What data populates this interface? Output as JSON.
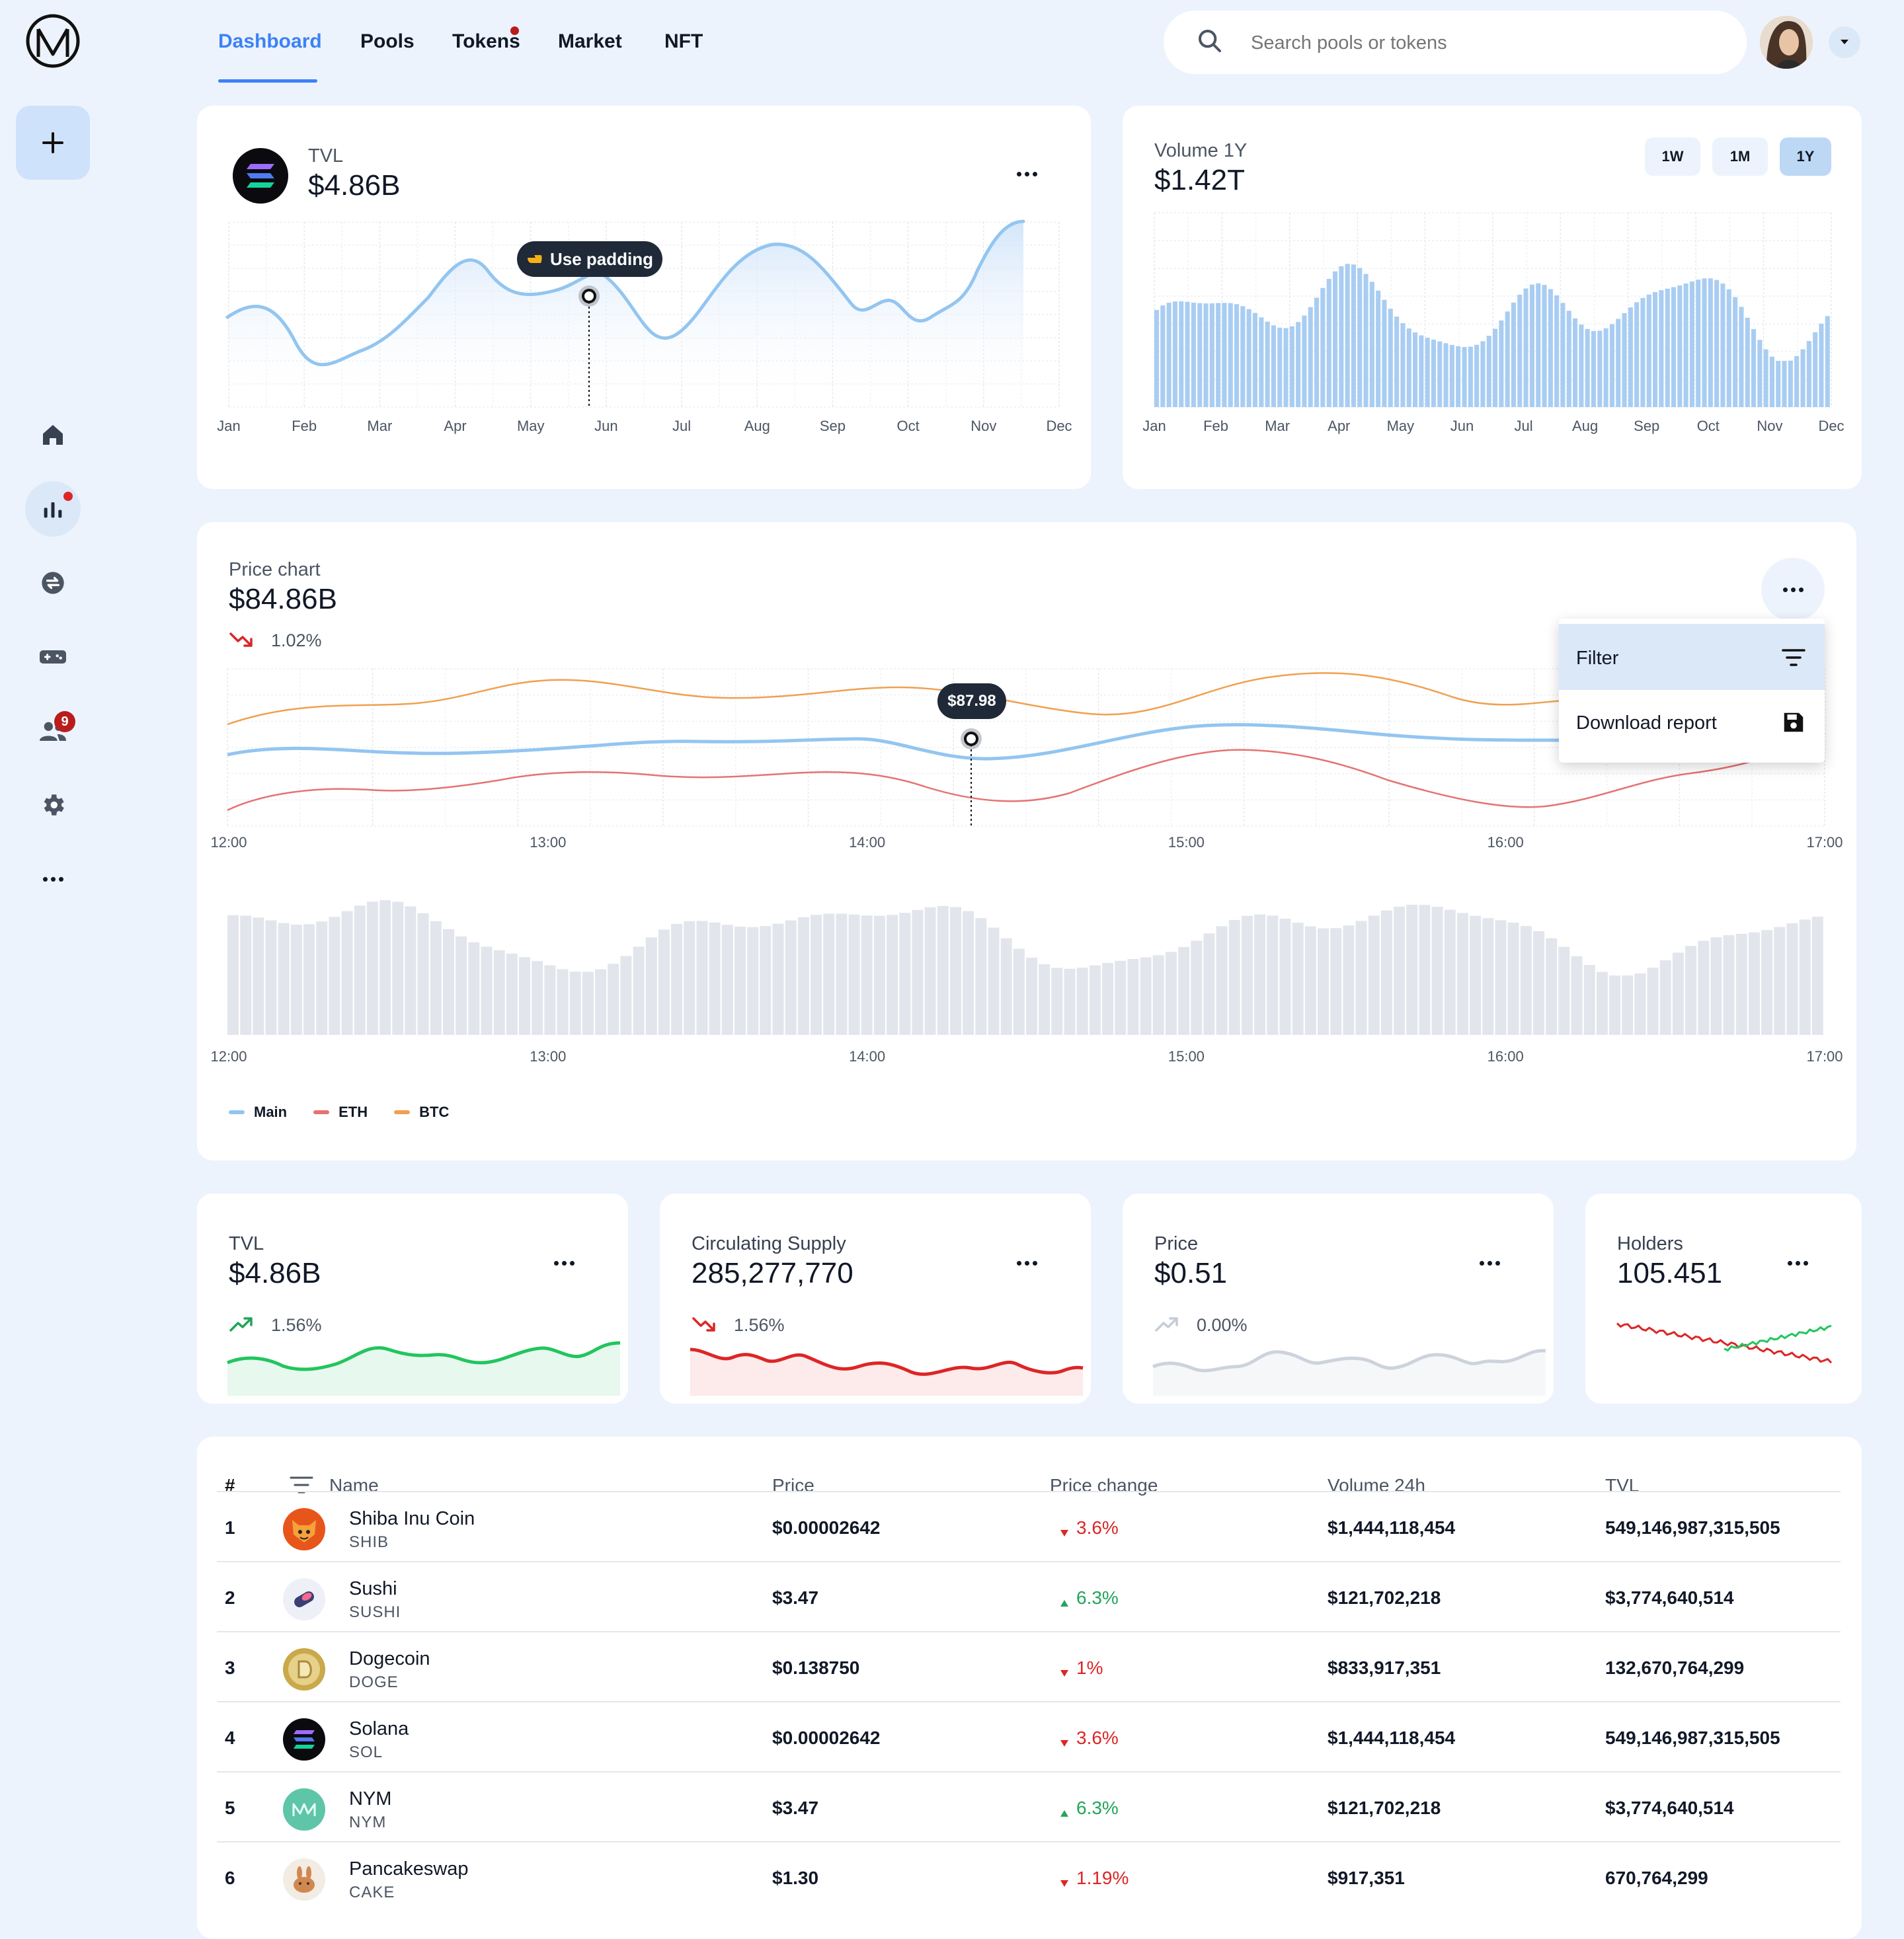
{
  "nav": {
    "tabs": [
      "Dashboard",
      "Pools",
      "Tokens",
      "Market",
      "NFT"
    ],
    "active": "Dashboard"
  },
  "search": {
    "placeholder": "Search pools or tokens"
  },
  "sidebar": {
    "badge_count": "9",
    "icons": [
      "plus-icon",
      "home-icon",
      "chart-icon",
      "swap-icon",
      "gamepad-icon",
      "users-icon",
      "gear-icon",
      "more-icon"
    ]
  },
  "tvl_card": {
    "title": "TVL",
    "value": "$4.86B",
    "tooltip": "Use padding",
    "months": [
      "Jan",
      "Feb",
      "Mar",
      "Apr",
      "May",
      "Jun",
      "Jul",
      "Aug",
      "Sep",
      "Oct",
      "Nov",
      "Dec"
    ]
  },
  "volume_card": {
    "title": "Volume 1Y",
    "value": "$1.42T",
    "ranges": [
      "1W",
      "1M",
      "1Y"
    ],
    "active_range": "1Y",
    "months": [
      "Jan",
      "Feb",
      "Mar",
      "Apr",
      "May",
      "Jun",
      "Jul",
      "Aug",
      "Sep",
      "Oct",
      "Nov",
      "Dec"
    ]
  },
  "price_chart": {
    "title": "Price chart",
    "value": "$84.86B",
    "change": "1.02%",
    "tooltip": "$87.98",
    "times": [
      "12:00",
      "13:00",
      "14:00",
      "15:00",
      "16:00",
      "17:00"
    ],
    "legend": [
      "Main",
      "ETH",
      "BTC"
    ],
    "menu": {
      "filter": "Filter",
      "download": "Download report"
    }
  },
  "stats": [
    {
      "title": "TVL",
      "value": "$4.86B",
      "change": "1.56%",
      "trend": "up"
    },
    {
      "title": "Circulating Supply",
      "value": "285,277,770",
      "change": "1.56%",
      "trend": "down"
    },
    {
      "title": "Price",
      "value": "$0.51",
      "change": "0.00%",
      "trend": "flat"
    },
    {
      "title": "Holders",
      "value": "105.451"
    }
  ],
  "table": {
    "headers": {
      "num": "#",
      "name": "Name",
      "price": "Price",
      "change": "Price change",
      "volume": "Volume 24h",
      "tvl": "TVL"
    },
    "rows": [
      {
        "num": "1",
        "name": "Shiba Inu Coin",
        "symbol": "SHIB",
        "price": "$0.00002642",
        "change": "3.6%",
        "dir": "down",
        "volume": "$1,444,118,454",
        "tvl": "549,146,987,315,505"
      },
      {
        "num": "2",
        "name": "Sushi",
        "symbol": "SUSHI",
        "price": "$3.47",
        "change": "6.3%",
        "dir": "up",
        "volume": "$121,702,218",
        "tvl": "$3,774,640,514"
      },
      {
        "num": "3",
        "name": "Dogecoin",
        "symbol": "DOGE",
        "price": "$0.138750",
        "change": "1%",
        "dir": "down",
        "volume": "$833,917,351",
        "tvl": "132,670,764,299"
      },
      {
        "num": "4",
        "name": "Solana",
        "symbol": "SOL",
        "price": "$0.00002642",
        "change": "3.6%",
        "dir": "down",
        "volume": "$1,444,118,454",
        "tvl": "549,146,987,315,505"
      },
      {
        "num": "5",
        "name": "NYM",
        "symbol": "NYM",
        "price": "$3.47",
        "change": "6.3%",
        "dir": "up",
        "volume": "$121,702,218",
        "tvl": "$3,774,640,514"
      },
      {
        "num": "6",
        "name": "Pancakeswap",
        "symbol": "CAKE",
        "price": "$1.30",
        "change": "1.19%",
        "dir": "down",
        "volume": "$917,351",
        "tvl": "670,764,299"
      }
    ]
  },
  "colors": {
    "accent": "#3b82f6",
    "main_line": "#93c5f0",
    "eth_line": "#e57373",
    "btc_line": "#f0a050",
    "up": "#22a559",
    "down": "#dc2626"
  }
}
